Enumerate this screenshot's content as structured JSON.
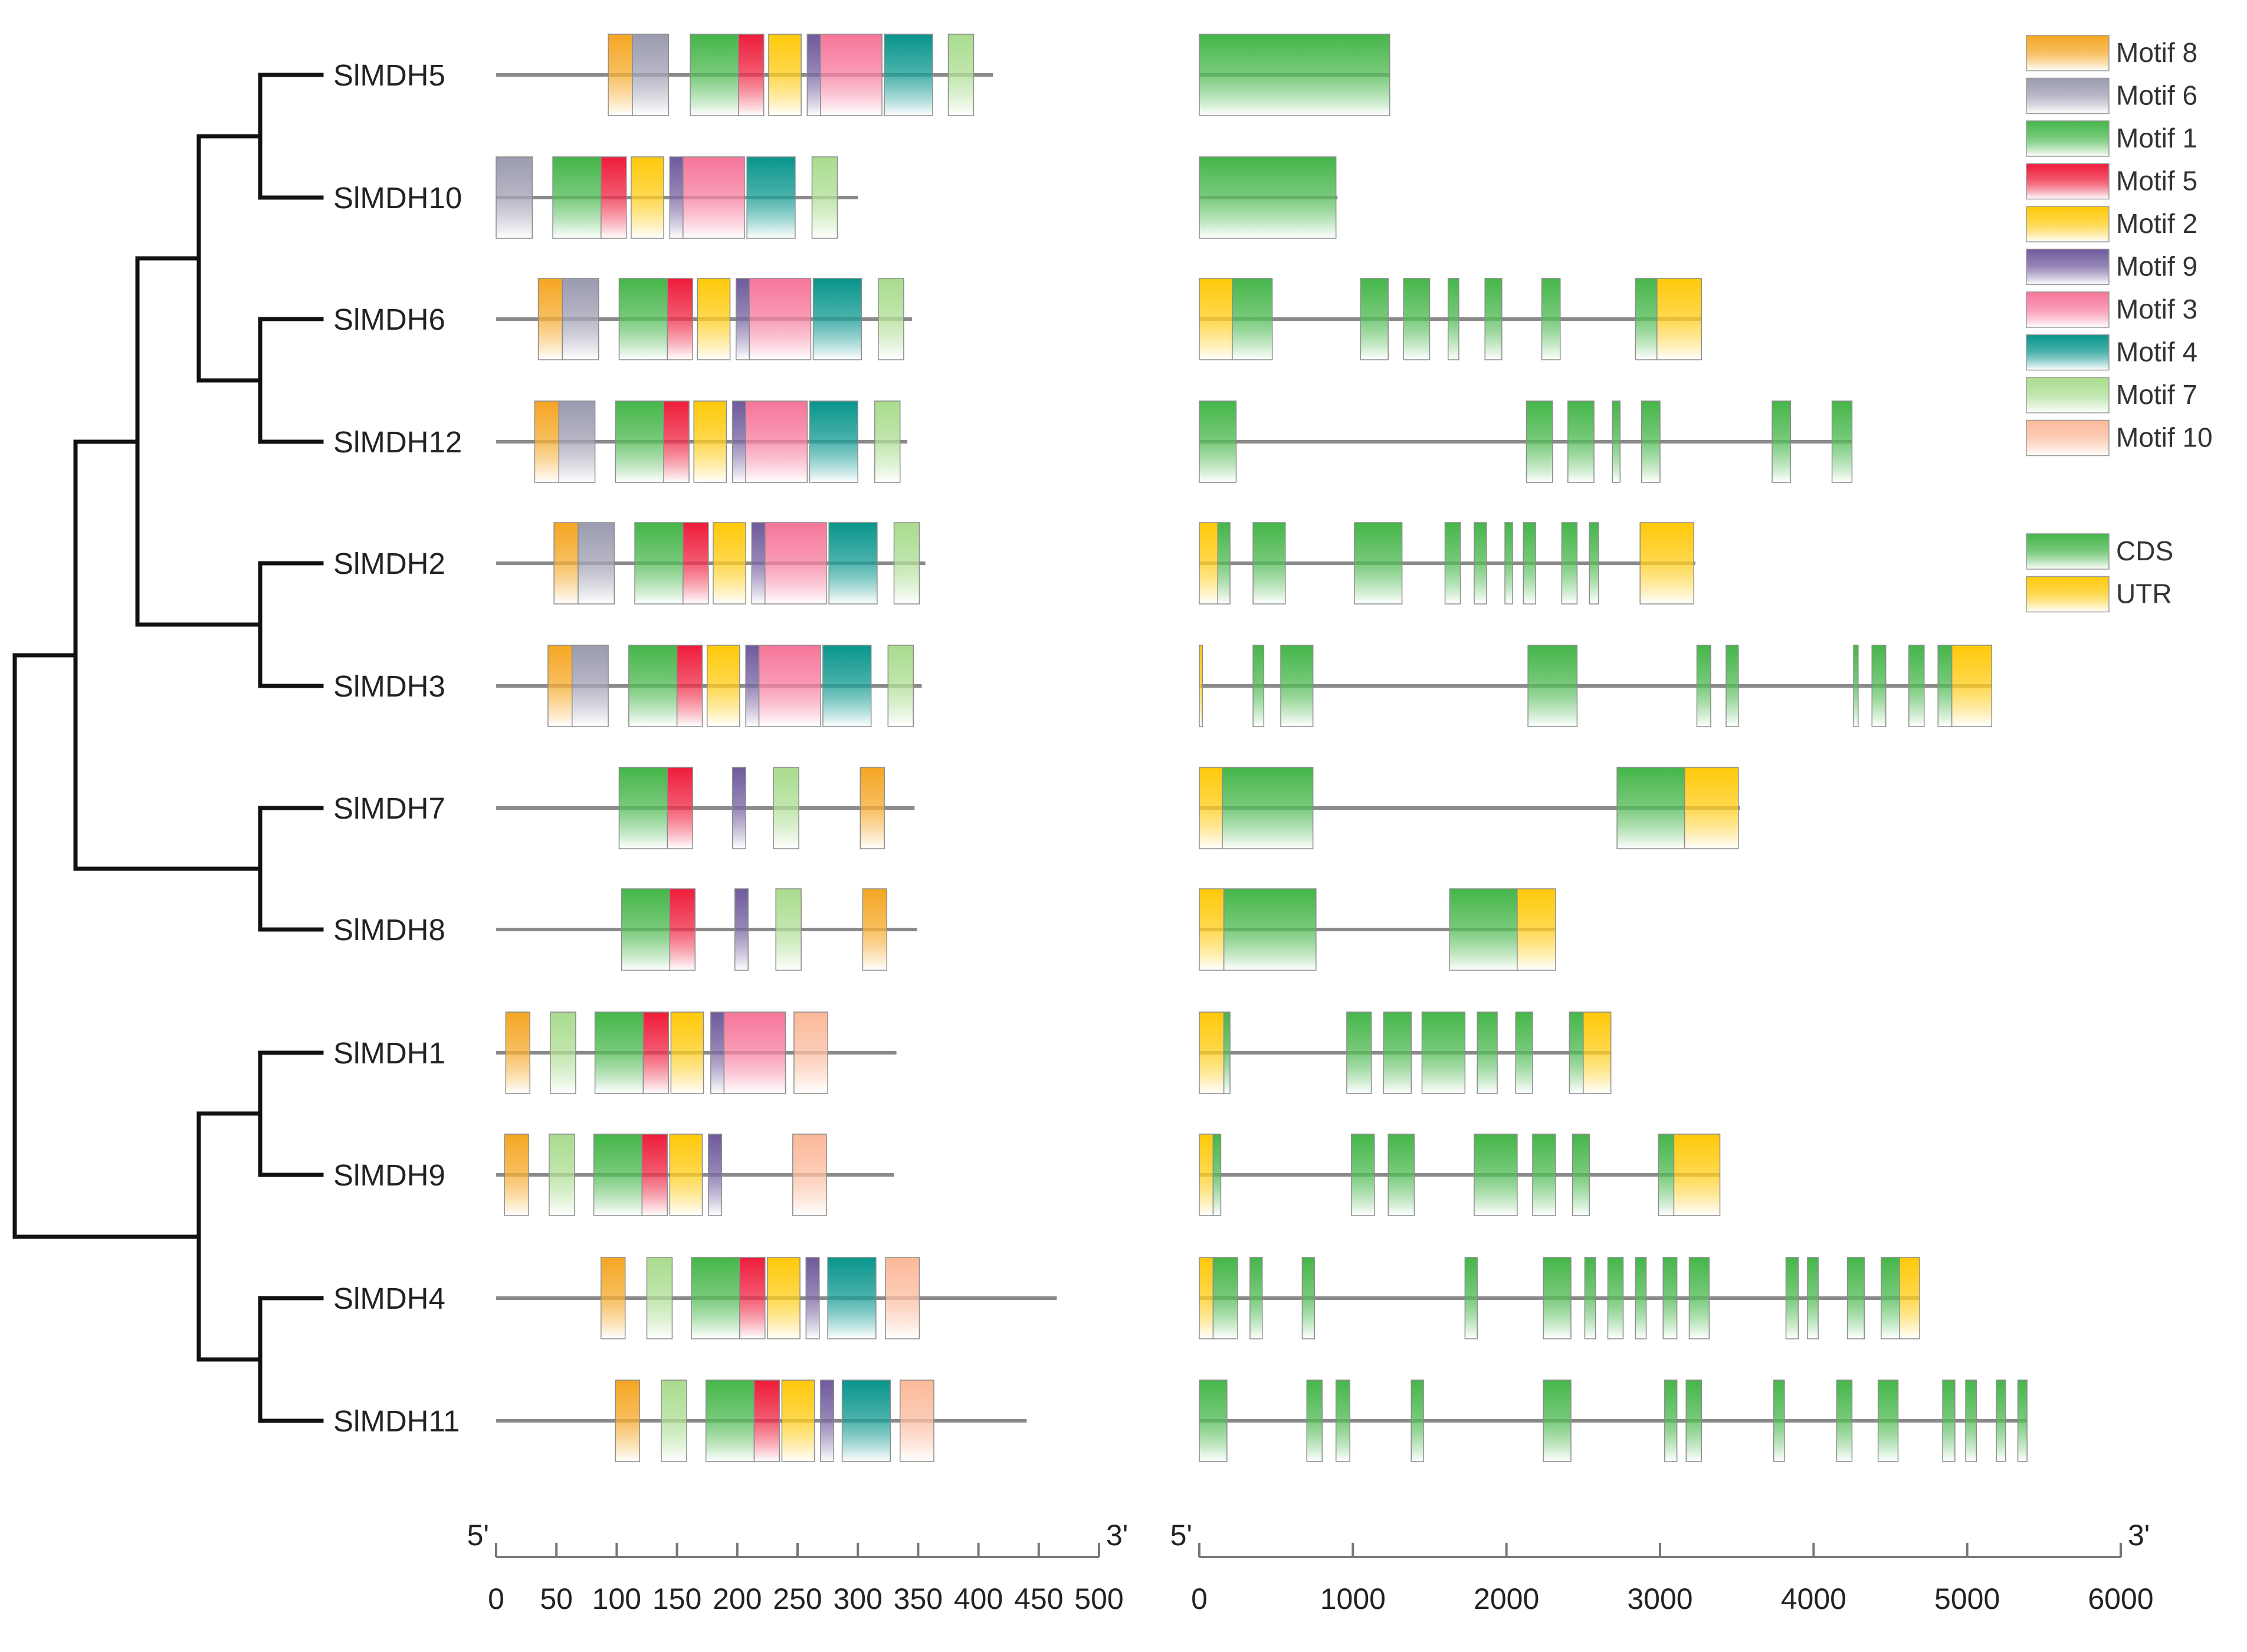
{
  "genes": [
    "SlMDH5",
    "SlMDH10",
    "SlMDH6",
    "SlMDH12",
    "SlMDH2",
    "SlMDH3",
    "SlMDH7",
    "SlMDH8",
    "SlMDH1",
    "SlMDH9",
    "SlMDH4",
    "SlMDH11"
  ],
  "motif_legend": [
    {
      "id": "m8",
      "label": "Motif 8",
      "color": "#f5a623"
    },
    {
      "id": "m6",
      "label": "Motif 6",
      "color": "#9b9bb0"
    },
    {
      "id": "m1",
      "label": "Motif 1",
      "color": "#45b649"
    },
    {
      "id": "m5",
      "label": "Motif 5",
      "color": "#ee1c3a"
    },
    {
      "id": "m2",
      "label": "Motif 2",
      "color": "#ffc90a"
    },
    {
      "id": "m9",
      "label": "Motif 9",
      "color": "#6f5a9c"
    },
    {
      "id": "m3",
      "label": "Motif 3",
      "color": "#f6769a"
    },
    {
      "id": "m4",
      "label": "Motif 4",
      "color": "#07958c"
    },
    {
      "id": "m7",
      "label": "Motif 7",
      "color": "#a9dc8e"
    },
    {
      "id": "m10",
      "label": "Motif 10",
      "color": "#fbb99a"
    }
  ],
  "structure_legend": [
    {
      "id": "cds",
      "label": "CDS",
      "color": "#45b649"
    },
    {
      "id": "utr",
      "label": "UTR",
      "color": "#ffc90a"
    }
  ],
  "motif_axis": {
    "five_prime": "5'",
    "three_prime": "3'",
    "min": 0,
    "max": 500,
    "ticks": [
      "0",
      "50",
      "100",
      "150",
      "200",
      "250",
      "300",
      "350",
      "400",
      "450",
      "500"
    ]
  },
  "structure_axis": {
    "five_prime": "5'",
    "three_prime": "3'",
    "min": 0,
    "max": 6000,
    "ticks": [
      "0",
      "1000",
      "2000",
      "3000",
      "4000",
      "5000",
      "6000"
    ]
  },
  "motifs": [
    {
      "gene": "SlMDH5",
      "length": 412,
      "motifs": [
        [
          "m8",
          93,
          113
        ],
        [
          "m6",
          113,
          143
        ],
        [
          "m1",
          161,
          201
        ],
        [
          "m5",
          201,
          222
        ],
        [
          "m2",
          226,
          253
        ],
        [
          "m9",
          258,
          269
        ],
        [
          "m3",
          269,
          320
        ],
        [
          "m4",
          322,
          362
        ],
        [
          "m7",
          375,
          396
        ]
      ]
    },
    {
      "gene": "SlMDH10",
      "length": 300,
      "motifs": [
        [
          "m6",
          0,
          30
        ],
        [
          "m1",
          47,
          87
        ],
        [
          "m5",
          87,
          108
        ],
        [
          "m2",
          112,
          139
        ],
        [
          "m9",
          144,
          155
        ],
        [
          "m3",
          155,
          206
        ],
        [
          "m4",
          208,
          248
        ],
        [
          "m7",
          262,
          283
        ]
      ]
    },
    {
      "gene": "SlMDH6",
      "length": 345,
      "motifs": [
        [
          "m8",
          35,
          55
        ],
        [
          "m6",
          55,
          85
        ],
        [
          "m1",
          102,
          142
        ],
        [
          "m5",
          142,
          163
        ],
        [
          "m2",
          167,
          194
        ],
        [
          "m9",
          199,
          210
        ],
        [
          "m3",
          210,
          261
        ],
        [
          "m4",
          263,
          303
        ],
        [
          "m7",
          317,
          338
        ]
      ]
    },
    {
      "gene": "SlMDH12",
      "length": 341,
      "motifs": [
        [
          "m8",
          32,
          52
        ],
        [
          "m6",
          52,
          82
        ],
        [
          "m1",
          99,
          139
        ],
        [
          "m5",
          139,
          160
        ],
        [
          "m2",
          164,
          191
        ],
        [
          "m9",
          196,
          207
        ],
        [
          "m3",
          207,
          258
        ],
        [
          "m4",
          260,
          300
        ],
        [
          "m7",
          314,
          335
        ]
      ]
    },
    {
      "gene": "SlMDH2",
      "length": 356,
      "motifs": [
        [
          "m8",
          48,
          68
        ],
        [
          "m6",
          68,
          98
        ],
        [
          "m1",
          115,
          155
        ],
        [
          "m5",
          155,
          176
        ],
        [
          "m2",
          180,
          207
        ],
        [
          "m9",
          212,
          223
        ],
        [
          "m3",
          223,
          274
        ],
        [
          "m4",
          276,
          316
        ],
        [
          "m7",
          330,
          351
        ]
      ]
    },
    {
      "gene": "SlMDH3",
      "length": 353,
      "motifs": [
        [
          "m8",
          43,
          63
        ],
        [
          "m6",
          63,
          93
        ],
        [
          "m1",
          110,
          150
        ],
        [
          "m5",
          150,
          171
        ],
        [
          "m2",
          175,
          202
        ],
        [
          "m9",
          207,
          218
        ],
        [
          "m3",
          218,
          269
        ],
        [
          "m4",
          271,
          311
        ],
        [
          "m7",
          325,
          346
        ]
      ]
    },
    {
      "gene": "SlMDH7",
      "length": 347,
      "motifs": [
        [
          "m1",
          102,
          142
        ],
        [
          "m5",
          142,
          163
        ],
        [
          "m9",
          196,
          207
        ],
        [
          "m7",
          230,
          251
        ],
        [
          "m8",
          302,
          322
        ]
      ]
    },
    {
      "gene": "SlMDH8",
      "length": 349,
      "motifs": [
        [
          "m1",
          104,
          144
        ],
        [
          "m5",
          144,
          165
        ],
        [
          "m9",
          198,
          209
        ],
        [
          "m7",
          232,
          253
        ],
        [
          "m8",
          304,
          324
        ]
      ]
    },
    {
      "gene": "SlMDH1",
      "length": 332,
      "motifs": [
        [
          "m8",
          8,
          28
        ],
        [
          "m7",
          45,
          66
        ],
        [
          "m1",
          82,
          122
        ],
        [
          "m5",
          122,
          143
        ],
        [
          "m2",
          145,
          172
        ],
        [
          "m9",
          178,
          189
        ],
        [
          "m3",
          189,
          240
        ],
        [
          "m10",
          247,
          275
        ]
      ]
    },
    {
      "gene": "SlMDH9",
      "length": 330,
      "motifs": [
        [
          "m8",
          7,
          27
        ],
        [
          "m7",
          44,
          65
        ],
        [
          "m1",
          81,
          121
        ],
        [
          "m5",
          121,
          142
        ],
        [
          "m2",
          144,
          171
        ],
        [
          "m9",
          176,
          187
        ],
        [
          "m10",
          246,
          274
        ]
      ]
    },
    {
      "gene": "SlMDH4",
      "length": 465,
      "motifs": [
        [
          "m8",
          87,
          107
        ],
        [
          "m7",
          125,
          146
        ],
        [
          "m1",
          162,
          202
        ],
        [
          "m5",
          202,
          223
        ],
        [
          "m2",
          225,
          252
        ],
        [
          "m9",
          257,
          268
        ],
        [
          "m4",
          275,
          315
        ],
        [
          "m10",
          323,
          351
        ]
      ]
    },
    {
      "gene": "SlMDH11",
      "length": 440,
      "motifs": [
        [
          "m8",
          99,
          119
        ],
        [
          "m7",
          137,
          158
        ],
        [
          "m1",
          174,
          214
        ],
        [
          "m5",
          214,
          235
        ],
        [
          "m2",
          237,
          264
        ],
        [
          "m9",
          269,
          280
        ],
        [
          "m4",
          287,
          327
        ],
        [
          "m10",
          335,
          363
        ]
      ]
    }
  ],
  "structures": [
    {
      "gene": "SlMDH5",
      "length": 1240,
      "features": [
        [
          "cds",
          0,
          1240
        ]
      ]
    },
    {
      "gene": "SlMDH10",
      "length": 900,
      "features": [
        [
          "cds",
          0,
          890
        ]
      ]
    },
    {
      "gene": "SlMDH6",
      "length": 3270,
      "features": [
        [
          "utr",
          0,
          215
        ],
        [
          "cds",
          215,
          475
        ],
        [
          "cds",
          1050,
          1230
        ],
        [
          "cds",
          1330,
          1500
        ],
        [
          "cds",
          1620,
          1690
        ],
        [
          "cds",
          1860,
          1970
        ],
        [
          "cds",
          2230,
          2350
        ],
        [
          "cds",
          2840,
          2980
        ],
        [
          "utr",
          2980,
          3270
        ]
      ]
    },
    {
      "gene": "SlMDH12",
      "length": 4250,
      "features": [
        [
          "cds",
          0,
          240
        ],
        [
          "cds",
          2130,
          2300
        ],
        [
          "cds",
          2400,
          2570
        ],
        [
          "cds",
          2690,
          2740
        ],
        [
          "cds",
          2880,
          3000
        ],
        [
          "cds",
          3730,
          3850
        ],
        [
          "cds",
          4120,
          4250
        ]
      ]
    },
    {
      "gene": "SlMDH2",
      "length": 3230,
      "features": [
        [
          "utr",
          0,
          120
        ],
        [
          "cds",
          120,
          200
        ],
        [
          "cds",
          350,
          560
        ],
        [
          "cds",
          1010,
          1320
        ],
        [
          "cds",
          1600,
          1700
        ],
        [
          "cds",
          1790,
          1870
        ],
        [
          "cds",
          1990,
          2040
        ],
        [
          "cds",
          2110,
          2190
        ],
        [
          "cds",
          2360,
          2460
        ],
        [
          "cds",
          2540,
          2600
        ],
        [
          "utr",
          2870,
          3220
        ]
      ]
    },
    {
      "gene": "SlMDH3",
      "length": 5160,
      "features": [
        [
          "utr",
          0,
          20
        ],
        [
          "cds",
          350,
          420
        ],
        [
          "cds",
          530,
          740
        ],
        [
          "cds",
          2140,
          2460
        ],
        [
          "cds",
          3240,
          3330
        ],
        [
          "cds",
          3430,
          3510
        ],
        [
          "cds",
          4260,
          4290
        ],
        [
          "cds",
          4380,
          4470
        ],
        [
          "cds",
          4620,
          4720
        ],
        [
          "cds",
          4810,
          4900
        ],
        [
          "utr",
          4900,
          5160
        ]
      ]
    },
    {
      "gene": "SlMDH7",
      "length": 3520,
      "features": [
        [
          "utr",
          0,
          150
        ],
        [
          "cds",
          150,
          740
        ],
        [
          "cds",
          2720,
          3160
        ],
        [
          "utr",
          3160,
          3510
        ]
      ]
    },
    {
      "gene": "SlMDH8",
      "length": 2320,
      "features": [
        [
          "utr",
          0,
          160
        ],
        [
          "cds",
          160,
          760
        ],
        [
          "cds",
          1630,
          2070
        ],
        [
          "utr",
          2070,
          2320
        ]
      ]
    },
    {
      "gene": "SlMDH1",
      "length": 2680,
      "features": [
        [
          "utr",
          0,
          160
        ],
        [
          "cds",
          160,
          200
        ],
        [
          "cds",
          960,
          1120
        ],
        [
          "cds",
          1200,
          1380
        ],
        [
          "cds",
          1450,
          1730
        ],
        [
          "cds",
          1810,
          1940
        ],
        [
          "cds",
          2060,
          2170
        ],
        [
          "cds",
          2410,
          2500
        ],
        [
          "utr",
          2500,
          2680
        ]
      ]
    },
    {
      "gene": "SlMDH9",
      "length": 3390,
      "features": [
        [
          "utr",
          0,
          90
        ],
        [
          "cds",
          90,
          140
        ],
        [
          "cds",
          990,
          1140
        ],
        [
          "cds",
          1230,
          1400
        ],
        [
          "cds",
          1790,
          2070
        ],
        [
          "cds",
          2170,
          2320
        ],
        [
          "cds",
          2430,
          2540
        ],
        [
          "cds",
          2990,
          3090
        ],
        [
          "utr",
          3090,
          3390
        ]
      ]
    },
    {
      "gene": "SlMDH4",
      "length": 4690,
      "features": [
        [
          "utr",
          0,
          90
        ],
        [
          "cds",
          90,
          250
        ],
        [
          "cds",
          330,
          410
        ],
        [
          "cds",
          670,
          750
        ],
        [
          "cds",
          1730,
          1810
        ],
        [
          "cds",
          2240,
          2420
        ],
        [
          "cds",
          2510,
          2580
        ],
        [
          "cds",
          2660,
          2760
        ],
        [
          "cds",
          2840,
          2910
        ],
        [
          "cds",
          3020,
          3110
        ],
        [
          "cds",
          3190,
          3320
        ],
        [
          "cds",
          3820,
          3900
        ],
        [
          "cds",
          3960,
          4030
        ],
        [
          "cds",
          4220,
          4330
        ],
        [
          "cds",
          4440,
          4560
        ],
        [
          "utr",
          4560,
          4690
        ]
      ]
    },
    {
      "gene": "SlMDH11",
      "length": 5390,
      "features": [
        [
          "cds",
          0,
          180
        ],
        [
          "cds",
          700,
          800
        ],
        [
          "cds",
          890,
          980
        ],
        [
          "cds",
          1380,
          1460
        ],
        [
          "cds",
          2240,
          2420
        ],
        [
          "cds",
          3030,
          3110
        ],
        [
          "cds",
          3170,
          3270
        ],
        [
          "cds",
          3740,
          3810
        ],
        [
          "cds",
          4150,
          4250
        ],
        [
          "cds",
          4420,
          4550
        ],
        [
          "cds",
          4840,
          4920
        ],
        [
          "cds",
          4990,
          5060
        ],
        [
          "cds",
          5190,
          5250
        ],
        [
          "cds",
          5330,
          5390
        ]
      ]
    }
  ]
}
